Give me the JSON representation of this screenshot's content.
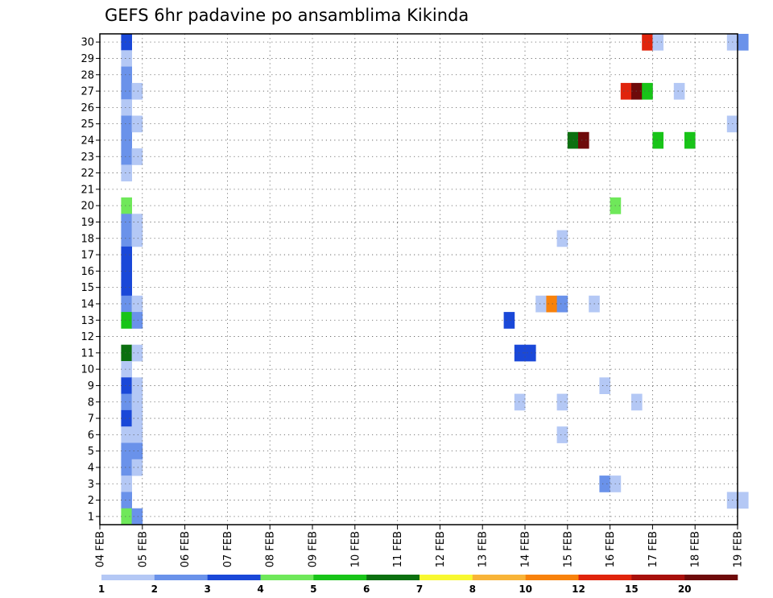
{
  "chart_data": {
    "type": "heatmap",
    "title": "GEFS 6hr padavine po ansamblima Kikinda",
    "xlabel": "",
    "ylabel": "",
    "x_tick_labels": [
      "04 FEB",
      "05 FEB",
      "06 FEB",
      "07 FEB",
      "08 FEB",
      "09 FEB",
      "10 FEB",
      "11 FEB",
      "12 FEB",
      "13 FEB",
      "14 FEB",
      "15 FEB",
      "16 FEB",
      "17 FEB",
      "18 FEB",
      "19 FEB"
    ],
    "y_tick_labels": [
      "1",
      "2",
      "3",
      "4",
      "5",
      "6",
      "7",
      "8",
      "9",
      "10",
      "11",
      "12",
      "13",
      "14",
      "15",
      "16",
      "17",
      "18",
      "19",
      "20",
      "21",
      "22",
      "23",
      "24",
      "25",
      "26",
      "27",
      "28",
      "29",
      "30"
    ],
    "grid": true,
    "colorbar": {
      "labels": [
        "1",
        "2",
        "3",
        "4",
        "5",
        "6",
        "7",
        "8",
        "10",
        "12",
        "15",
        "20"
      ],
      "colors": [
        "#b4c8f5",
        "#6a92ea",
        "#1a48d8",
        "#6fe85a",
        "#18c418",
        "#0c7010",
        "#f8f830",
        "#f8b438",
        "#f8820c",
        "#e0240c",
        "#a8100c",
        "#6e0a0a"
      ]
    },
    "cells": [
      {
        "member": 30,
        "t": "04 FEB 12z",
        "v": 3
      },
      {
        "member": 30,
        "t": "16 FEB 18z",
        "v": 12
      },
      {
        "member": 30,
        "t": "17 FEB 00z",
        "v": 1
      },
      {
        "member": 30,
        "t": "18 FEB 18z",
        "v": 1
      },
      {
        "member": 30,
        "t": "19 FEB 00z",
        "v": 2
      },
      {
        "member": 29,
        "t": "04 FEB 12z",
        "v": 1
      },
      {
        "member": 28,
        "t": "04 FEB 12z",
        "v": 2
      },
      {
        "member": 27,
        "t": "04 FEB 12z",
        "v": 2
      },
      {
        "member": 27,
        "t": "04 FEB 18z",
        "v": 1
      },
      {
        "member": 27,
        "t": "16 FEB 06z",
        "v": 12
      },
      {
        "member": 27,
        "t": "16 FEB 12z",
        "v": 20
      },
      {
        "member": 27,
        "t": "16 FEB 18z",
        "v": 5
      },
      {
        "member": 27,
        "t": "17 FEB 12z",
        "v": 1
      },
      {
        "member": 26,
        "t": "04 FEB 12z",
        "v": 1
      },
      {
        "member": 25,
        "t": "04 FEB 12z",
        "v": 2
      },
      {
        "member": 25,
        "t": "04 FEB 18z",
        "v": 1
      },
      {
        "member": 25,
        "t": "18 FEB 18z",
        "v": 1
      },
      {
        "member": 24,
        "t": "04 FEB 12z",
        "v": 2
      },
      {
        "member": 24,
        "t": "15 FEB 00z",
        "v": 6
      },
      {
        "member": 24,
        "t": "15 FEB 06z",
        "v": 20
      },
      {
        "member": 24,
        "t": "17 FEB 00z",
        "v": 5
      },
      {
        "member": 24,
        "t": "17 FEB 18z",
        "v": 5
      },
      {
        "member": 23,
        "t": "04 FEB 12z",
        "v": 2
      },
      {
        "member": 23,
        "t": "04 FEB 18z",
        "v": 1
      },
      {
        "member": 22,
        "t": "04 FEB 12z",
        "v": 1
      },
      {
        "member": 20,
        "t": "04 FEB 12z",
        "v": 4
      },
      {
        "member": 20,
        "t": "16 FEB 00z",
        "v": 4
      },
      {
        "member": 19,
        "t": "04 FEB 12z",
        "v": 2
      },
      {
        "member": 19,
        "t": "04 FEB 18z",
        "v": 1
      },
      {
        "member": 18,
        "t": "04 FEB 12z",
        "v": 2
      },
      {
        "member": 18,
        "t": "04 FEB 18z",
        "v": 1
      },
      {
        "member": 18,
        "t": "14 FEB 18z",
        "v": 1
      },
      {
        "member": 17,
        "t": "04 FEB 12z",
        "v": 3
      },
      {
        "member": 16,
        "t": "04 FEB 12z",
        "v": 3
      },
      {
        "member": 15,
        "t": "04 FEB 12z",
        "v": 3
      },
      {
        "member": 14,
        "t": "04 FEB 12z",
        "v": 2
      },
      {
        "member": 14,
        "t": "04 FEB 18z",
        "v": 1
      },
      {
        "member": 14,
        "t": "14 FEB 06z",
        "v": 1
      },
      {
        "member": 14,
        "t": "14 FEB 12z",
        "v": 10
      },
      {
        "member": 14,
        "t": "14 FEB 18z",
        "v": 2
      },
      {
        "member": 14,
        "t": "15 FEB 12z",
        "v": 1
      },
      {
        "member": 13,
        "t": "04 FEB 12z",
        "v": 5
      },
      {
        "member": 13,
        "t": "04 FEB 18z",
        "v": 2
      },
      {
        "member": 13,
        "t": "13 FEB 12z",
        "v": 3
      },
      {
        "member": 11,
        "t": "04 FEB 12z",
        "v": 6
      },
      {
        "member": 11,
        "t": "04 FEB 18z",
        "v": 1
      },
      {
        "member": 11,
        "t": "13 FEB 18z",
        "v": 3
      },
      {
        "member": 11,
        "t": "14 FEB 00z",
        "v": 3
      },
      {
        "member": 10,
        "t": "04 FEB 12z",
        "v": 1
      },
      {
        "member": 9,
        "t": "04 FEB 12z",
        "v": 3
      },
      {
        "member": 9,
        "t": "04 FEB 18z",
        "v": 1
      },
      {
        "member": 9,
        "t": "15 FEB 18z",
        "v": 1
      },
      {
        "member": 8,
        "t": "04 FEB 12z",
        "v": 2
      },
      {
        "member": 8,
        "t": "04 FEB 18z",
        "v": 1
      },
      {
        "member": 8,
        "t": "13 FEB 18z",
        "v": 1
      },
      {
        "member": 8,
        "t": "14 FEB 18z",
        "v": 1
      },
      {
        "member": 8,
        "t": "16 FEB 12z",
        "v": 1
      },
      {
        "member": 7,
        "t": "04 FEB 12z",
        "v": 3
      },
      {
        "member": 7,
        "t": "04 FEB 18z",
        "v": 1
      },
      {
        "member": 6,
        "t": "04 FEB 12z",
        "v": 1
      },
      {
        "member": 6,
        "t": "04 FEB 18z",
        "v": 1
      },
      {
        "member": 6,
        "t": "14 FEB 18z",
        "v": 1
      },
      {
        "member": 5,
        "t": "04 FEB 12z",
        "v": 2
      },
      {
        "member": 5,
        "t": "04 FEB 18z",
        "v": 2
      },
      {
        "member": 4,
        "t": "04 FEB 12z",
        "v": 2
      },
      {
        "member": 4,
        "t": "04 FEB 18z",
        "v": 1
      },
      {
        "member": 3,
        "t": "04 FEB 12z",
        "v": 1
      },
      {
        "member": 3,
        "t": "15 FEB 18z",
        "v": 2
      },
      {
        "member": 3,
        "t": "16 FEB 00z",
        "v": 1
      },
      {
        "member": 2,
        "t": "04 FEB 12z",
        "v": 2
      },
      {
        "member": 2,
        "t": "18 FEB 18z",
        "v": 1
      },
      {
        "member": 2,
        "t": "19 FEB 00z",
        "v": 1
      },
      {
        "member": 1,
        "t": "04 FEB 12z",
        "v": 4
      },
      {
        "member": 1,
        "t": "04 FEB 18z",
        "v": 2
      }
    ]
  }
}
